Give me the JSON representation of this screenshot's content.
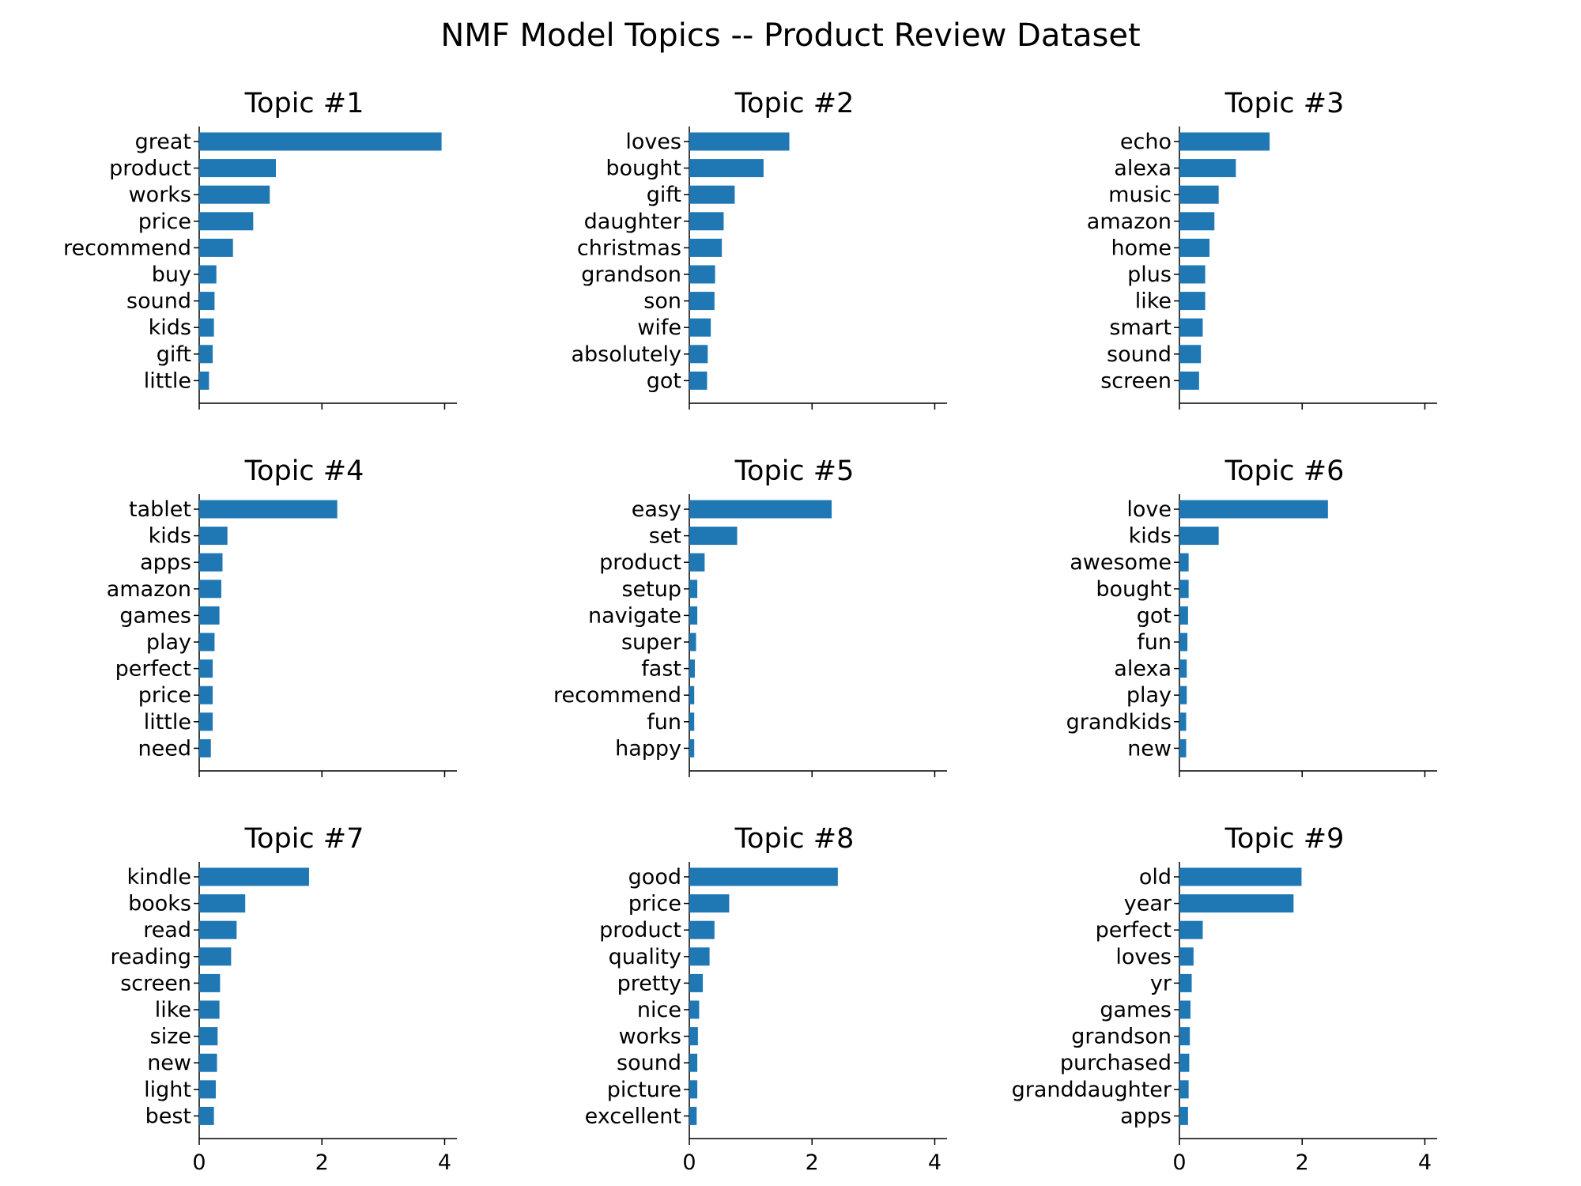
{
  "figure": {
    "title": "NMF Model Topics -- Product Review Dataset"
  },
  "colors": {
    "bar": "#1f77b4",
    "axis": "#000000",
    "text": "#000000"
  },
  "chart_data": [
    {
      "type": "bar",
      "orientation": "horizontal",
      "title": "Topic #1",
      "categories": [
        "great",
        "product",
        "works",
        "price",
        "recommend",
        "buy",
        "sound",
        "kids",
        "gift",
        "little"
      ],
      "values": [
        3.95,
        1.25,
        1.15,
        0.88,
        0.55,
        0.28,
        0.25,
        0.24,
        0.22,
        0.16
      ],
      "xlim": [
        0,
        4.2
      ],
      "xticks": [
        0,
        2,
        4
      ],
      "show_xticklabels": false,
      "grid": false
    },
    {
      "type": "bar",
      "orientation": "horizontal",
      "title": "Topic #2",
      "categories": [
        "loves",
        "bought",
        "gift",
        "daughter",
        "christmas",
        "grandson",
        "son",
        "wife",
        "absolutely",
        "got"
      ],
      "values": [
        1.63,
        1.21,
        0.74,
        0.56,
        0.53,
        0.42,
        0.41,
        0.35,
        0.3,
        0.29
      ],
      "xlim": [
        0,
        4.2
      ],
      "xticks": [
        0,
        2,
        4
      ],
      "show_xticklabels": false,
      "grid": false
    },
    {
      "type": "bar",
      "orientation": "horizontal",
      "title": "Topic #3",
      "categories": [
        "echo",
        "alexa",
        "music",
        "amazon",
        "home",
        "plus",
        "like",
        "smart",
        "sound",
        "screen"
      ],
      "values": [
        1.47,
        0.92,
        0.64,
        0.57,
        0.49,
        0.42,
        0.42,
        0.38,
        0.35,
        0.32
      ],
      "xlim": [
        0,
        4.2
      ],
      "xticks": [
        0,
        2,
        4
      ],
      "show_xticklabels": false,
      "grid": false
    },
    {
      "type": "bar",
      "orientation": "horizontal",
      "title": "Topic #4",
      "categories": [
        "tablet",
        "kids",
        "apps",
        "amazon",
        "games",
        "play",
        "perfect",
        "price",
        "little",
        "need"
      ],
      "values": [
        2.25,
        0.46,
        0.38,
        0.36,
        0.33,
        0.25,
        0.22,
        0.22,
        0.22,
        0.19
      ],
      "xlim": [
        0,
        4.2
      ],
      "xticks": [
        0,
        2,
        4
      ],
      "show_xticklabels": false,
      "grid": false
    },
    {
      "type": "bar",
      "orientation": "horizontal",
      "title": "Topic #5",
      "categories": [
        "easy",
        "set",
        "product",
        "setup",
        "navigate",
        "super",
        "fast",
        "recommend",
        "fun",
        "happy"
      ],
      "values": [
        2.32,
        0.78,
        0.25,
        0.13,
        0.13,
        0.11,
        0.09,
        0.08,
        0.08,
        0.08
      ],
      "xlim": [
        0,
        4.2
      ],
      "xticks": [
        0,
        2,
        4
      ],
      "show_xticklabels": false,
      "grid": false
    },
    {
      "type": "bar",
      "orientation": "horizontal",
      "title": "Topic #6",
      "categories": [
        "love",
        "kids",
        "awesome",
        "bought",
        "got",
        "fun",
        "alexa",
        "play",
        "grandkids",
        "new"
      ],
      "values": [
        2.42,
        0.64,
        0.15,
        0.15,
        0.14,
        0.13,
        0.12,
        0.12,
        0.11,
        0.11
      ],
      "xlim": [
        0,
        4.2
      ],
      "xticks": [
        0,
        2,
        4
      ],
      "show_xticklabels": false,
      "grid": false
    },
    {
      "type": "bar",
      "orientation": "horizontal",
      "title": "Topic #7",
      "categories": [
        "kindle",
        "books",
        "read",
        "reading",
        "screen",
        "like",
        "size",
        "new",
        "light",
        "best"
      ],
      "values": [
        1.79,
        0.75,
        0.61,
        0.52,
        0.34,
        0.33,
        0.3,
        0.29,
        0.27,
        0.24
      ],
      "xlim": [
        0,
        4.2
      ],
      "xticks": [
        0,
        2,
        4
      ],
      "xticklabels": [
        "0",
        "2",
        "4"
      ],
      "show_xticklabels": true,
      "grid": false
    },
    {
      "type": "bar",
      "orientation": "horizontal",
      "title": "Topic #8",
      "categories": [
        "good",
        "price",
        "product",
        "quality",
        "pretty",
        "nice",
        "works",
        "sound",
        "picture",
        "excellent"
      ],
      "values": [
        2.42,
        0.65,
        0.41,
        0.33,
        0.22,
        0.16,
        0.14,
        0.13,
        0.13,
        0.12
      ],
      "xlim": [
        0,
        4.2
      ],
      "xticks": [
        0,
        2,
        4
      ],
      "xticklabels": [
        "0",
        "2",
        "4"
      ],
      "show_xticklabels": true,
      "grid": false
    },
    {
      "type": "bar",
      "orientation": "horizontal",
      "title": "Topic #9",
      "categories": [
        "old",
        "year",
        "perfect",
        "loves",
        "yr",
        "games",
        "grandson",
        "purchased",
        "granddaughter",
        "apps"
      ],
      "values": [
        1.99,
        1.86,
        0.38,
        0.23,
        0.2,
        0.18,
        0.17,
        0.16,
        0.15,
        0.14
      ],
      "xlim": [
        0,
        4.2
      ],
      "xticks": [
        0,
        2,
        4
      ],
      "xticklabels": [
        "0",
        "2",
        "4"
      ],
      "show_xticklabels": true,
      "grid": false
    }
  ]
}
